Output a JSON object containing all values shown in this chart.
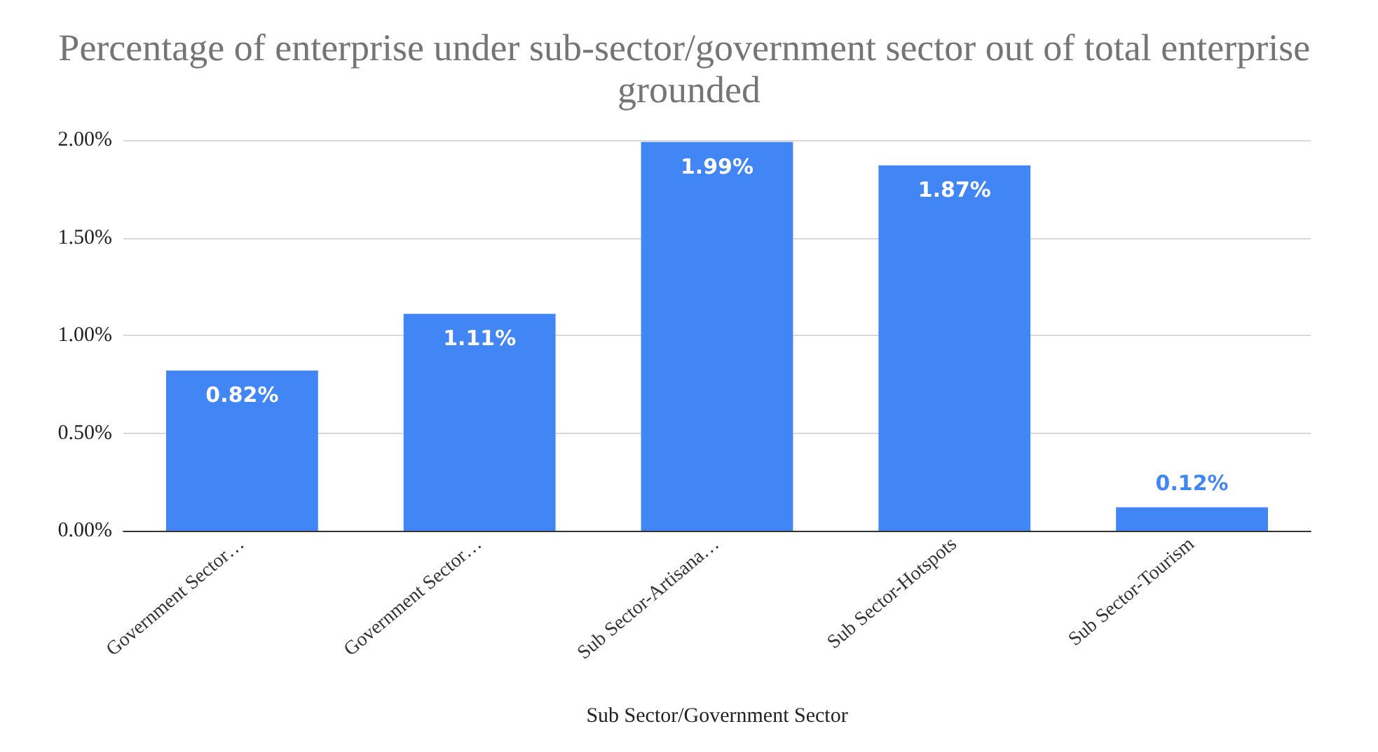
{
  "chart_data": {
    "type": "bar",
    "title": "Percentage of enterprise under sub-sector/government sector out of total enterprise grounded",
    "xlabel": "Sub Sector/Government Sector",
    "categories": [
      "Government Sector…",
      "Government Sector…",
      "Sub Sector-Artisana…",
      "Sub Sector-Hotspots",
      "Sub Sector-Tourism"
    ],
    "values": [
      0.82,
      1.11,
      1.99,
      1.87,
      0.12
    ],
    "value_labels": [
      "0.82%",
      "1.11%",
      "1.99%",
      "1.87%",
      "0.12%"
    ],
    "color": "#4285f4",
    "ylim": [
      0,
      2
    ],
    "yticks": [
      {
        "value": 0,
        "label": "0.00%"
      },
      {
        "value": 0.5,
        "label": "0.50%"
      },
      {
        "value": 1,
        "label": "1.00%"
      },
      {
        "value": 1.5,
        "label": "1.50%"
      },
      {
        "value": 2,
        "label": "2.00%"
      }
    ],
    "grid": "y"
  }
}
